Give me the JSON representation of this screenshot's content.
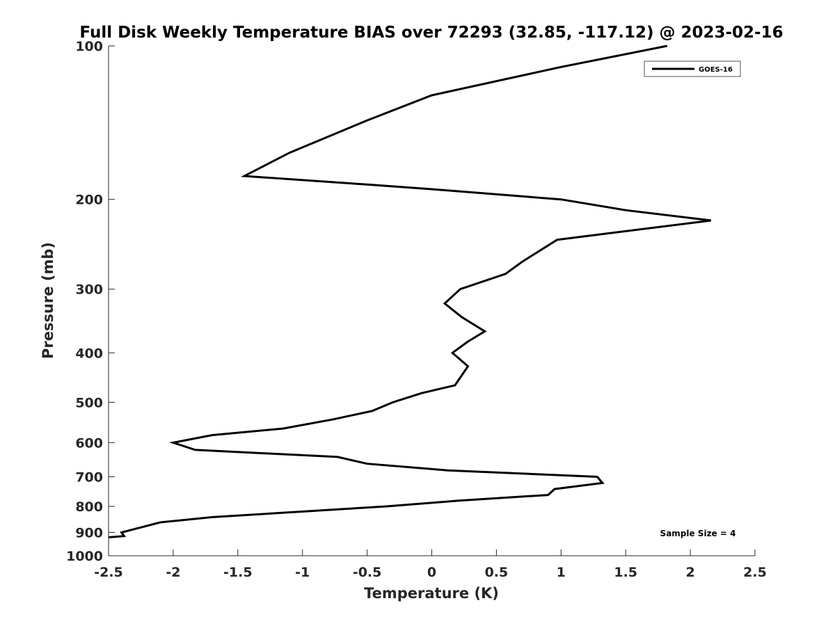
{
  "chart_data": {
    "type": "line",
    "title": "Full Disk Weekly Temperature BIAS over 72293 (32.85, -117.12) @ 2023-02-16",
    "xlabel": "Temperature (K)",
    "ylabel": "Pressure (mb)",
    "xlim": [
      -2.5,
      2.5
    ],
    "ylim": [
      100,
      1000
    ],
    "y_scale": "log",
    "y_reversed": true,
    "grid": false,
    "x_ticks": [
      -2.5,
      -2,
      -1.5,
      -1,
      -0.5,
      0,
      0.5,
      1,
      1.5,
      2,
      2.5
    ],
    "x_tick_labels": [
      "-2.5",
      "-2",
      "-1.5",
      "-1",
      "-0.5",
      "0",
      "0.5",
      "1",
      "1.5",
      "2",
      "2.5"
    ],
    "y_ticks": [
      100,
      200,
      300,
      400,
      500,
      600,
      700,
      800,
      900,
      1000
    ],
    "y_tick_labels": [
      "100",
      "200",
      "300",
      "400",
      "500",
      "600",
      "700",
      "800",
      "900",
      "1000"
    ],
    "legend": {
      "position": "top-right",
      "entries": [
        "GOES-16"
      ]
    },
    "annotation": "Sample Size = 4",
    "series": [
      {
        "name": "GOES-16",
        "color": "#000000",
        "points": [
          {
            "x": 1.82,
            "y": 100
          },
          {
            "x": 1.0,
            "y": 110
          },
          {
            "x": 0.0,
            "y": 125
          },
          {
            "x": -0.5,
            "y": 140
          },
          {
            "x": -1.1,
            "y": 162
          },
          {
            "x": -1.45,
            "y": 180
          },
          {
            "x": -0.5,
            "y": 187
          },
          {
            "x": 0.0,
            "y": 191
          },
          {
            "x": 1.0,
            "y": 200
          },
          {
            "x": 1.5,
            "y": 210
          },
          {
            "x": 2.16,
            "y": 220
          },
          {
            "x": 0.97,
            "y": 240
          },
          {
            "x": 0.7,
            "y": 265
          },
          {
            "x": 0.57,
            "y": 280
          },
          {
            "x": 0.22,
            "y": 300
          },
          {
            "x": 0.1,
            "y": 320
          },
          {
            "x": 0.23,
            "y": 340
          },
          {
            "x": 0.41,
            "y": 363
          },
          {
            "x": 0.28,
            "y": 380
          },
          {
            "x": 0.16,
            "y": 400
          },
          {
            "x": 0.28,
            "y": 425
          },
          {
            "x": 0.18,
            "y": 463
          },
          {
            "x": -0.08,
            "y": 480
          },
          {
            "x": -0.3,
            "y": 500
          },
          {
            "x": -0.46,
            "y": 520
          },
          {
            "x": -0.76,
            "y": 540
          },
          {
            "x": -1.15,
            "y": 563
          },
          {
            "x": -1.7,
            "y": 580
          },
          {
            "x": -2.0,
            "y": 600
          },
          {
            "x": -1.83,
            "y": 620
          },
          {
            "x": -0.73,
            "y": 640
          },
          {
            "x": -0.5,
            "y": 660
          },
          {
            "x": 0.12,
            "y": 680
          },
          {
            "x": 1.28,
            "y": 700
          },
          {
            "x": 1.32,
            "y": 720
          },
          {
            "x": 0.95,
            "y": 740
          },
          {
            "x": 0.9,
            "y": 760
          },
          {
            "x": 0.2,
            "y": 780
          },
          {
            "x": -0.35,
            "y": 800
          },
          {
            "x": -1.7,
            "y": 840
          },
          {
            "x": -2.1,
            "y": 860
          },
          {
            "x": -2.4,
            "y": 900
          },
          {
            "x": -2.38,
            "y": 915
          },
          {
            "x": -2.5,
            "y": 920
          }
        ]
      }
    ]
  }
}
